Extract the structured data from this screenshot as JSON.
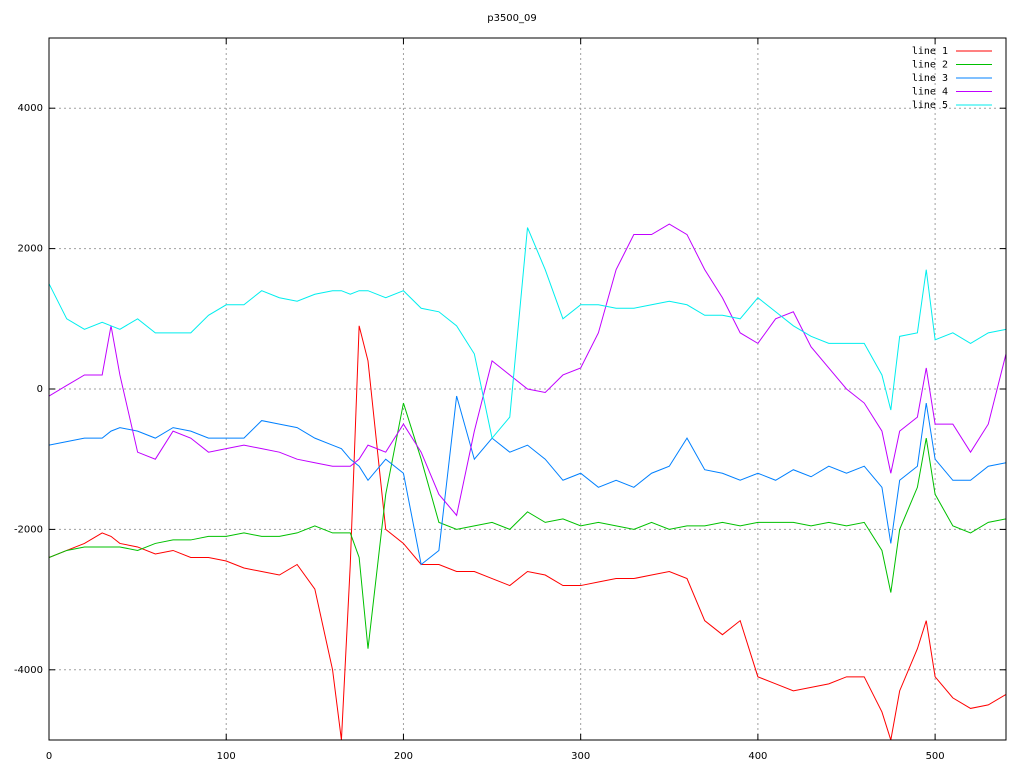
{
  "chart_data": {
    "type": "line",
    "title": "p3500_09",
    "x": [
      0,
      10,
      20,
      30,
      35,
      40,
      50,
      60,
      70,
      80,
      90,
      100,
      110,
      120,
      130,
      140,
      150,
      160,
      165,
      170,
      175,
      180,
      190,
      200,
      210,
      220,
      230,
      240,
      250,
      260,
      270,
      280,
      290,
      300,
      310,
      320,
      330,
      340,
      350,
      360,
      370,
      380,
      390,
      400,
      410,
      420,
      430,
      440,
      450,
      460,
      470,
      475,
      480,
      490,
      495,
      500,
      510,
      520,
      530,
      540
    ],
    "series": [
      {
        "name": "line 1",
        "color": "#ff0000",
        "values": [
          -2400,
          -2300,
          -2200,
          -2050,
          -2100,
          -2200,
          -2250,
          -2350,
          -2300,
          -2400,
          -2400,
          -2450,
          -2550,
          -2600,
          -2650,
          -2500,
          -2850,
          -4000,
          -5000,
          -2500,
          900,
          400,
          -2000,
          -2200,
          -2500,
          -2500,
          -2600,
          -2600,
          -2700,
          -2800,
          -2600,
          -2650,
          -2800,
          -2800,
          -2750,
          -2700,
          -2700,
          -2650,
          -2600,
          -2700,
          -3300,
          -3500,
          -3300,
          -4100,
          -4200,
          -4300,
          -4250,
          -4200,
          -4100,
          -4100,
          -4600,
          -5000,
          -4300,
          -3700,
          -3300,
          -4100,
          -4400,
          -4550,
          -4500,
          -4350
        ]
      },
      {
        "name": "line 2",
        "color": "#00c000",
        "values": [
          -2400,
          -2300,
          -2250,
          -2250,
          -2250,
          -2250,
          -2300,
          -2200,
          -2150,
          -2150,
          -2100,
          -2100,
          -2050,
          -2100,
          -2100,
          -2050,
          -1950,
          -2050,
          -2050,
          -2050,
          -2400,
          -3700,
          -1500,
          -200,
          -1000,
          -1900,
          -2000,
          -1950,
          -1900,
          -2000,
          -1750,
          -1900,
          -1850,
          -1950,
          -1900,
          -1950,
          -2000,
          -1900,
          -2000,
          -1950,
          -1950,
          -1900,
          -1950,
          -1900,
          -1900,
          -1900,
          -1950,
          -1900,
          -1950,
          -1900,
          -2300,
          -2900,
          -2000,
          -1400,
          -700,
          -1500,
          -1950,
          -2050,
          -1900,
          -1850
        ]
      },
      {
        "name": "line 3",
        "color": "#0080ff",
        "values": [
          -800,
          -750,
          -700,
          -700,
          -600,
          -550,
          -600,
          -700,
          -550,
          -600,
          -700,
          -700,
          -700,
          -450,
          -500,
          -550,
          -700,
          -800,
          -850,
          -1000,
          -1100,
          -1300,
          -1000,
          -1200,
          -2500,
          -2300,
          -100,
          -1000,
          -700,
          -900,
          -800,
          -1000,
          -1300,
          -1200,
          -1400,
          -1300,
          -1400,
          -1200,
          -1100,
          -700,
          -1150,
          -1200,
          -1300,
          -1200,
          -1300,
          -1150,
          -1250,
          -1100,
          -1200,
          -1100,
          -1400,
          -2200,
          -1300,
          -1100,
          -200,
          -1000,
          -1300,
          -1300,
          -1100,
          -1050
        ]
      },
      {
        "name": "line 4",
        "color": "#c000ff",
        "values": [
          -100,
          50,
          200,
          200,
          900,
          200,
          -900,
          -1000,
          -600,
          -700,
          -900,
          -850,
          -800,
          -850,
          -900,
          -1000,
          -1050,
          -1100,
          -1100,
          -1100,
          -1000,
          -800,
          -900,
          -500,
          -900,
          -1500,
          -1800,
          -600,
          400,
          200,
          0,
          -50,
          200,
          300,
          800,
          1700,
          2200,
          2200,
          2350,
          2200,
          1700,
          1300,
          800,
          650,
          1000,
          1100,
          600,
          300,
          0,
          -200,
          -600,
          -1200,
          -600,
          -400,
          300,
          -500,
          -500,
          -900,
          -500,
          500
        ]
      },
      {
        "name": "line 5",
        "color": "#00eeee",
        "values": [
          1500,
          1000,
          850,
          950,
          900,
          850,
          1000,
          800,
          800,
          800,
          1050,
          1200,
          1200,
          1400,
          1300,
          1250,
          1350,
          1400,
          1400,
          1350,
          1400,
          1400,
          1300,
          1400,
          1150,
          1100,
          900,
          500,
          -700,
          -400,
          2300,
          1700,
          1000,
          1200,
          1200,
          1150,
          1150,
          1200,
          1250,
          1200,
          1050,
          1050,
          1000,
          1300,
          1100,
          900,
          750,
          650,
          650,
          650,
          200,
          -300,
          750,
          800,
          1700,
          700,
          800,
          650,
          800,
          850
        ]
      }
    ],
    "xlim": [
      0,
      540
    ],
    "ylim": [
      -5000,
      5000
    ],
    "xticks": [
      0,
      100,
      200,
      300,
      400,
      500
    ],
    "yticks": [
      -4000,
      -2000,
      0,
      2000,
      4000
    ],
    "grid": true,
    "legend": "top-right"
  }
}
